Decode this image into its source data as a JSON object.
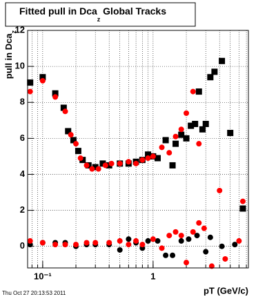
{
  "chart_data": {
    "type": "scatter",
    "title": [
      "Fitted pull in Dca",
      "z",
      " Global Tracks"
    ],
    "ylabel": [
      "pull in Dca",
      "z"
    ],
    "xlabel": "pT (GeV/c)",
    "footer": "Thu Oct 27 20:13:53 2011",
    "xscale": "log",
    "xlim": [
      0.073,
      7.3
    ],
    "ylim": [
      -1.2,
      12
    ],
    "xticks": [
      {
        "value": 0.1,
        "label": "10⁻¹"
      },
      1
    ],
    "xgrid": [
      0.08,
      0.09,
      0.1,
      0.2,
      0.3,
      0.4,
      0.5,
      0.6,
      0.7,
      0.8,
      0.9,
      1,
      2,
      3,
      4,
      5,
      6,
      7
    ],
    "yticks": [
      0,
      2,
      4,
      6,
      8,
      10,
      12
    ],
    "grid": true,
    "series": [
      {
        "color": "#000000",
        "marker": "square",
        "x": [
          0.077,
          0.1,
          0.13,
          0.155,
          0.17,
          0.19,
          0.21,
          0.23,
          0.26,
          0.3,
          0.35,
          0.4,
          0.5,
          0.6,
          0.7,
          0.8,
          0.9,
          1.0,
          1.1,
          1.3,
          1.5,
          1.6,
          1.8,
          2.0,
          2.2,
          2.4,
          2.6,
          2.8,
          3.0,
          3.3,
          3.6,
          4.2,
          5.0,
          6.5
        ],
        "values": [
          9.1,
          9.4,
          8.5,
          7.7,
          6.4,
          5.9,
          5.3,
          4.8,
          4.5,
          4.4,
          4.6,
          4.5,
          4.6,
          4.6,
          4.7,
          4.8,
          5.1,
          5.0,
          4.9,
          5.9,
          4.5,
          5.7,
          6.2,
          6.0,
          6.7,
          6.8,
          8.6,
          6.5,
          6.8,
          9.4,
          9.7,
          10.3,
          6.3,
          2.1
        ]
      },
      {
        "color": "#ff0000",
        "marker": "circle",
        "x": [
          0.077,
          0.1,
          0.13,
          0.16,
          0.18,
          0.2,
          0.22,
          0.25,
          0.28,
          0.32,
          0.37,
          0.42,
          0.5,
          0.6,
          0.7,
          0.8,
          0.9,
          1.0,
          1.2,
          1.4,
          1.6,
          1.8,
          2.0,
          2.3,
          2.6,
          4.0,
          6.5
        ],
        "values": [
          8.6,
          9.2,
          8.3,
          7.5,
          6.2,
          5.7,
          4.9,
          4.5,
          4.3,
          4.3,
          4.5,
          4.6,
          4.6,
          4.7,
          4.6,
          4.8,
          4.9,
          5.0,
          5.5,
          5.2,
          6.1,
          6.5,
          7.4,
          8.6,
          5.7,
          3.1,
          2.5
        ]
      },
      {
        "color": "#000000",
        "marker": "circle",
        "x": [
          0.077,
          0.1,
          0.13,
          0.16,
          0.2,
          0.25,
          0.3,
          0.4,
          0.5,
          0.6,
          0.7,
          0.8,
          0.9,
          1.1,
          1.3,
          1.5,
          1.8,
          2.1,
          2.5,
          3.0,
          3.3,
          4.2,
          5.5
        ],
        "values": [
          0.1,
          0.2,
          0.2,
          0.2,
          0.0,
          0.1,
          0.1,
          0.1,
          -0.2,
          0.4,
          0.2,
          -0.1,
          0.3,
          0.3,
          -0.5,
          -0.5,
          0.3,
          0.4,
          0.6,
          -0.3,
          0.5,
          0.0,
          0.1
        ]
      },
      {
        "color": "#ff0000",
        "marker": "circle",
        "x": [
          0.077,
          0.1,
          0.13,
          0.16,
          0.2,
          0.25,
          0.3,
          0.4,
          0.5,
          0.6,
          0.7,
          0.8,
          1.0,
          1.2,
          1.4,
          1.6,
          1.8,
          2.0,
          2.3,
          2.6,
          2.9,
          3.4,
          4.5,
          6.0
        ],
        "values": [
          0.3,
          0.2,
          0.1,
          0.1,
          0.1,
          0.2,
          0.2,
          0.2,
          0.3,
          0.1,
          0.3,
          0.1,
          0.4,
          -0.1,
          0.6,
          0.8,
          0.6,
          -0.9,
          0.8,
          1.3,
          1.0,
          -1.1,
          -0.7,
          0.3
        ]
      }
    ]
  }
}
